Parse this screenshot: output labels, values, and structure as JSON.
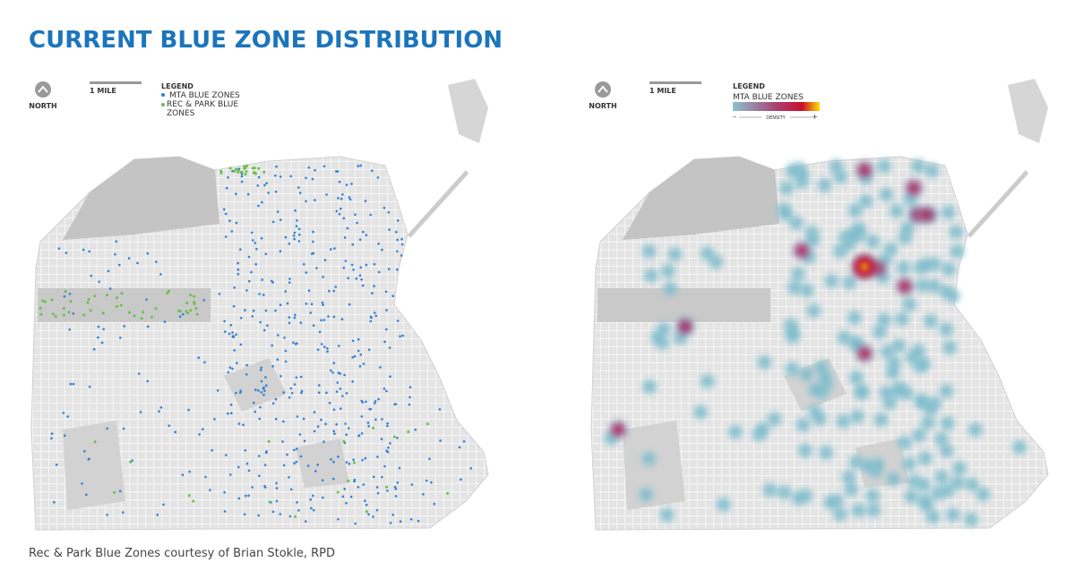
{
  "title": "CURRENT BLUE ZONE DISTRIBUTION",
  "maps": [
    {
      "north_label": "NORTH",
      "scale_label": "1 MILE",
      "legend": {
        "title": "LEGEND",
        "items": [
          "MTA BLUE ZONES",
          "REC & PARK BLUE ZONES"
        ]
      }
    },
    {
      "north_label": "NORTH",
      "scale_label": "1 MILE",
      "legend": {
        "title": "LEGEND",
        "item": "MTA BLUE ZONES",
        "density_label": "DENSITY",
        "minus": "–",
        "plus": "+"
      }
    }
  ],
  "footer": "Rec & Park Blue Zones courtesy of Brian Stokle, RPD"
}
